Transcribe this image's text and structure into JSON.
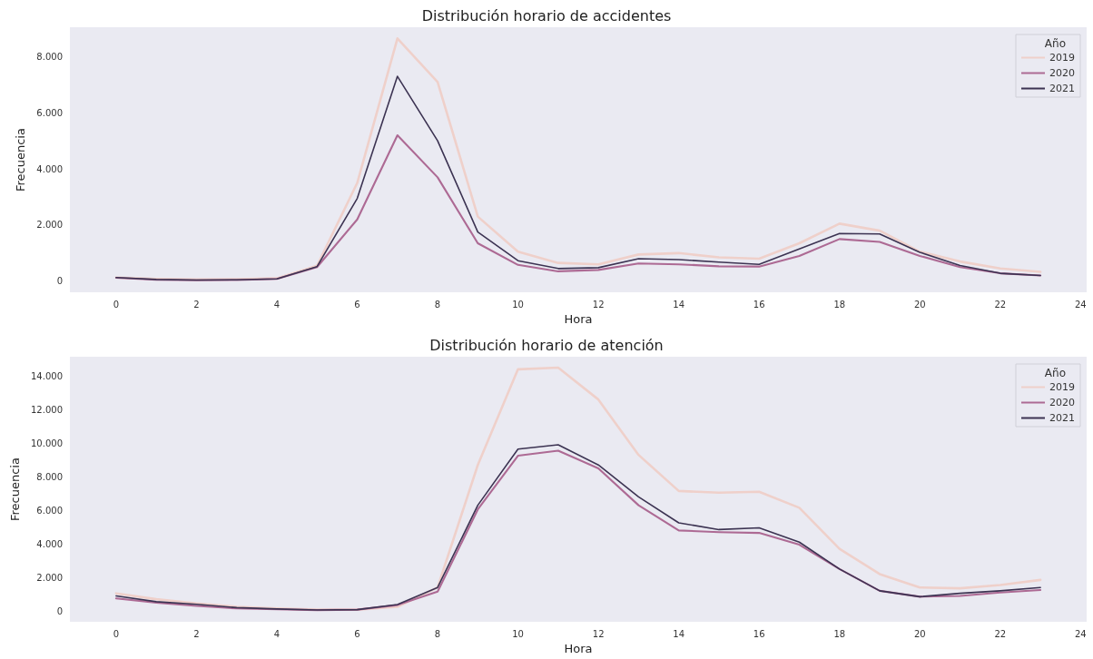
{
  "chart_data": [
    {
      "type": "line",
      "title": "Distribución horario de accidentes",
      "xlabel": "Hora",
      "ylabel": "Frecuencia",
      "legend_title": "Año",
      "legend": "top right",
      "x": [
        0,
        1,
        2,
        3,
        4,
        5,
        6,
        7,
        8,
        9,
        10,
        11,
        12,
        13,
        14,
        15,
        16,
        17,
        18,
        19,
        20,
        21,
        22,
        23
      ],
      "xlim": [
        -1.15,
        24.15
      ],
      "xticks": [
        0,
        2,
        4,
        6,
        8,
        10,
        12,
        14,
        16,
        18,
        20,
        22,
        24
      ],
      "ylim": [
        -400,
        9050
      ],
      "yticks": [
        {
          "value": 0,
          "label": "0"
        },
        {
          "value": 2000,
          "label": "2.000"
        },
        {
          "value": 4000,
          "label": "4.000"
        },
        {
          "value": 6000,
          "label": "6.000"
        },
        {
          "value": 8000,
          "label": "8.000"
        }
      ],
      "series": [
        {
          "name": "2019",
          "color": "#efd0ca",
          "values": [
            130,
            80,
            60,
            70,
            100,
            550,
            3500,
            8650,
            7100,
            2300,
            1050,
            650,
            600,
            950,
            1000,
            850,
            800,
            1350,
            2050,
            1800,
            1050,
            700,
            450,
            330
          ]
        },
        {
          "name": "2020",
          "color": "#ad6a94",
          "values": [
            120,
            50,
            30,
            40,
            80,
            500,
            2200,
            5200,
            3700,
            1350,
            580,
            350,
            400,
            630,
            600,
            530,
            520,
            900,
            1500,
            1400,
            900,
            500,
            280,
            200
          ]
        },
        {
          "name": "2021",
          "color": "#3c3352",
          "values": [
            130,
            60,
            40,
            50,
            80,
            520,
            2950,
            7300,
            5000,
            1750,
            730,
            450,
            480,
            800,
            770,
            680,
            600,
            1150,
            1700,
            1680,
            1030,
            560,
            280,
            200
          ]
        }
      ]
    },
    {
      "type": "line",
      "title": "Distribución horario de atención",
      "xlabel": "Hora",
      "ylabel": "Frecuencia",
      "legend_title": "Año",
      "legend": "top right",
      "x": [
        0,
        1,
        2,
        3,
        4,
        5,
        6,
        7,
        8,
        9,
        10,
        11,
        12,
        13,
        14,
        15,
        16,
        17,
        18,
        19,
        20,
        21,
        22,
        23
      ],
      "xlim": [
        -1.15,
        24.15
      ],
      "xticks": [
        0,
        2,
        4,
        6,
        8,
        10,
        12,
        14,
        16,
        18,
        20,
        22,
        24
      ],
      "ylim": [
        -650,
        15150
      ],
      "yticks": [
        {
          "value": 0,
          "label": "0"
        },
        {
          "value": 2000,
          "label": "2.000"
        },
        {
          "value": 4000,
          "label": "4.000"
        },
        {
          "value": 6000,
          "label": "6.000"
        },
        {
          "value": 8000,
          "label": "8.000"
        },
        {
          "value": 10000,
          "label": "10.000"
        },
        {
          "value": 12000,
          "label": "12.000"
        },
        {
          "value": 14000,
          "label": "14.000"
        }
      ],
      "series": [
        {
          "name": "2019",
          "color": "#efd0ca",
          "values": [
            1050,
            700,
            450,
            250,
            150,
            80,
            80,
            250,
            1400,
            8700,
            14400,
            14500,
            12600,
            9300,
            7150,
            7050,
            7100,
            6150,
            3700,
            2200,
            1400,
            1350,
            1550,
            1850
          ]
        },
        {
          "name": "2020",
          "color": "#ad6a94",
          "values": [
            750,
            500,
            300,
            150,
            100,
            50,
            80,
            350,
            1150,
            6050,
            9250,
            9550,
            8500,
            6300,
            4800,
            4700,
            4650,
            3950,
            2500,
            1200,
            850,
            900,
            1100,
            1250
          ]
        },
        {
          "name": "2021",
          "color": "#3c3352",
          "values": [
            900,
            550,
            400,
            200,
            120,
            60,
            80,
            380,
            1400,
            6300,
            9650,
            9900,
            8700,
            6800,
            5250,
            4850,
            4950,
            4100,
            2500,
            1200,
            850,
            1050,
            1200,
            1400
          ]
        }
      ]
    }
  ]
}
